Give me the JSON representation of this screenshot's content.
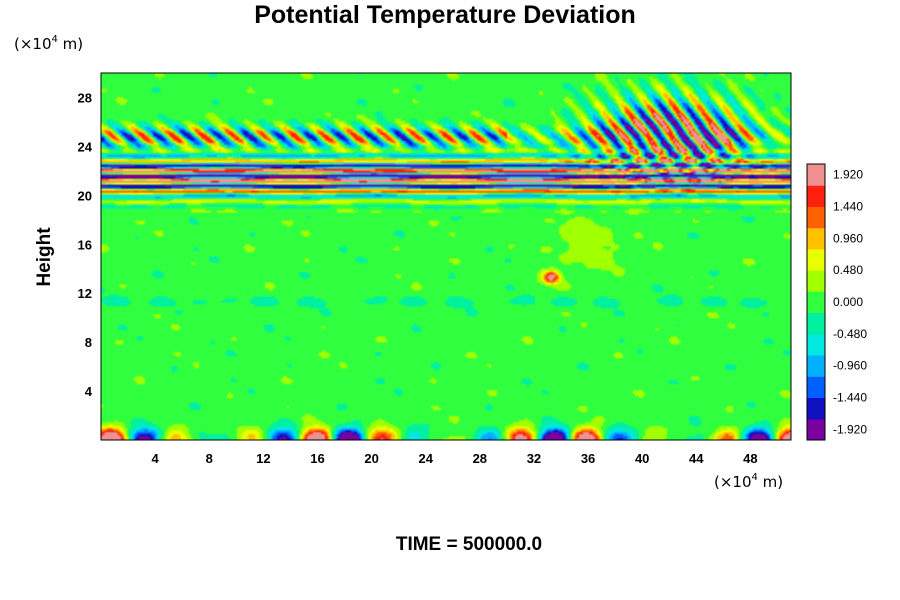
{
  "chart_data": {
    "type": "heatmap",
    "title": "Potential Temperature Deviation",
    "ylabel": "Height",
    "y_unit_prefix": "(×10",
    "y_unit_exp": "4",
    "y_unit_suffix": " m)",
    "x_unit_prefix": "(×10",
    "x_unit_exp": "4",
    "x_unit_suffix": " m)",
    "xlim": [
      0,
      51
    ],
    "ylim": [
      0,
      30
    ],
    "x_ticks": [
      "4",
      "8",
      "12",
      "16",
      "20",
      "24",
      "28",
      "32",
      "36",
      "40",
      "44",
      "48"
    ],
    "x_tick_values": [
      4,
      8,
      12,
      16,
      20,
      24,
      28,
      32,
      36,
      40,
      44,
      48
    ],
    "y_ticks": [
      "4",
      "8",
      "12",
      "16",
      "20",
      "24",
      "28"
    ],
    "y_tick_values": [
      4,
      8,
      12,
      16,
      20,
      24,
      28
    ],
    "colorbar": {
      "min": -2.08,
      "max": 2.08,
      "labels": [
        "1.920",
        "1.440",
        "0.960",
        "0.480",
        "0.000",
        "-0.480",
        "-0.960",
        "-1.440",
        "-1.920"
      ],
      "label_values": [
        1.92,
        1.44,
        0.96,
        0.48,
        0.0,
        -0.48,
        -0.96,
        -1.44,
        -1.92
      ],
      "colors": [
        "#7a00a0",
        "#1010c0",
        "#0060ff",
        "#00b0ff",
        "#00e8e0",
        "#00f0a0",
        "#30ff40",
        "#a0ff00",
        "#e8ff00",
        "#ffc000",
        "#ff6000",
        "#ff2010",
        "#f09090"
      ]
    },
    "features": [
      "stratified wave band near heights 20-25 with alternating strong positive and negative deviations",
      "tilted gravity-wave pattern near x 38-48 between heights 22-29",
      "strong alternating deviations in the lowest layer near the ground",
      "isolated positive anomaly near x 33, height 13"
    ]
  },
  "footer": {
    "time_text": "TIME = 500000.0"
  }
}
